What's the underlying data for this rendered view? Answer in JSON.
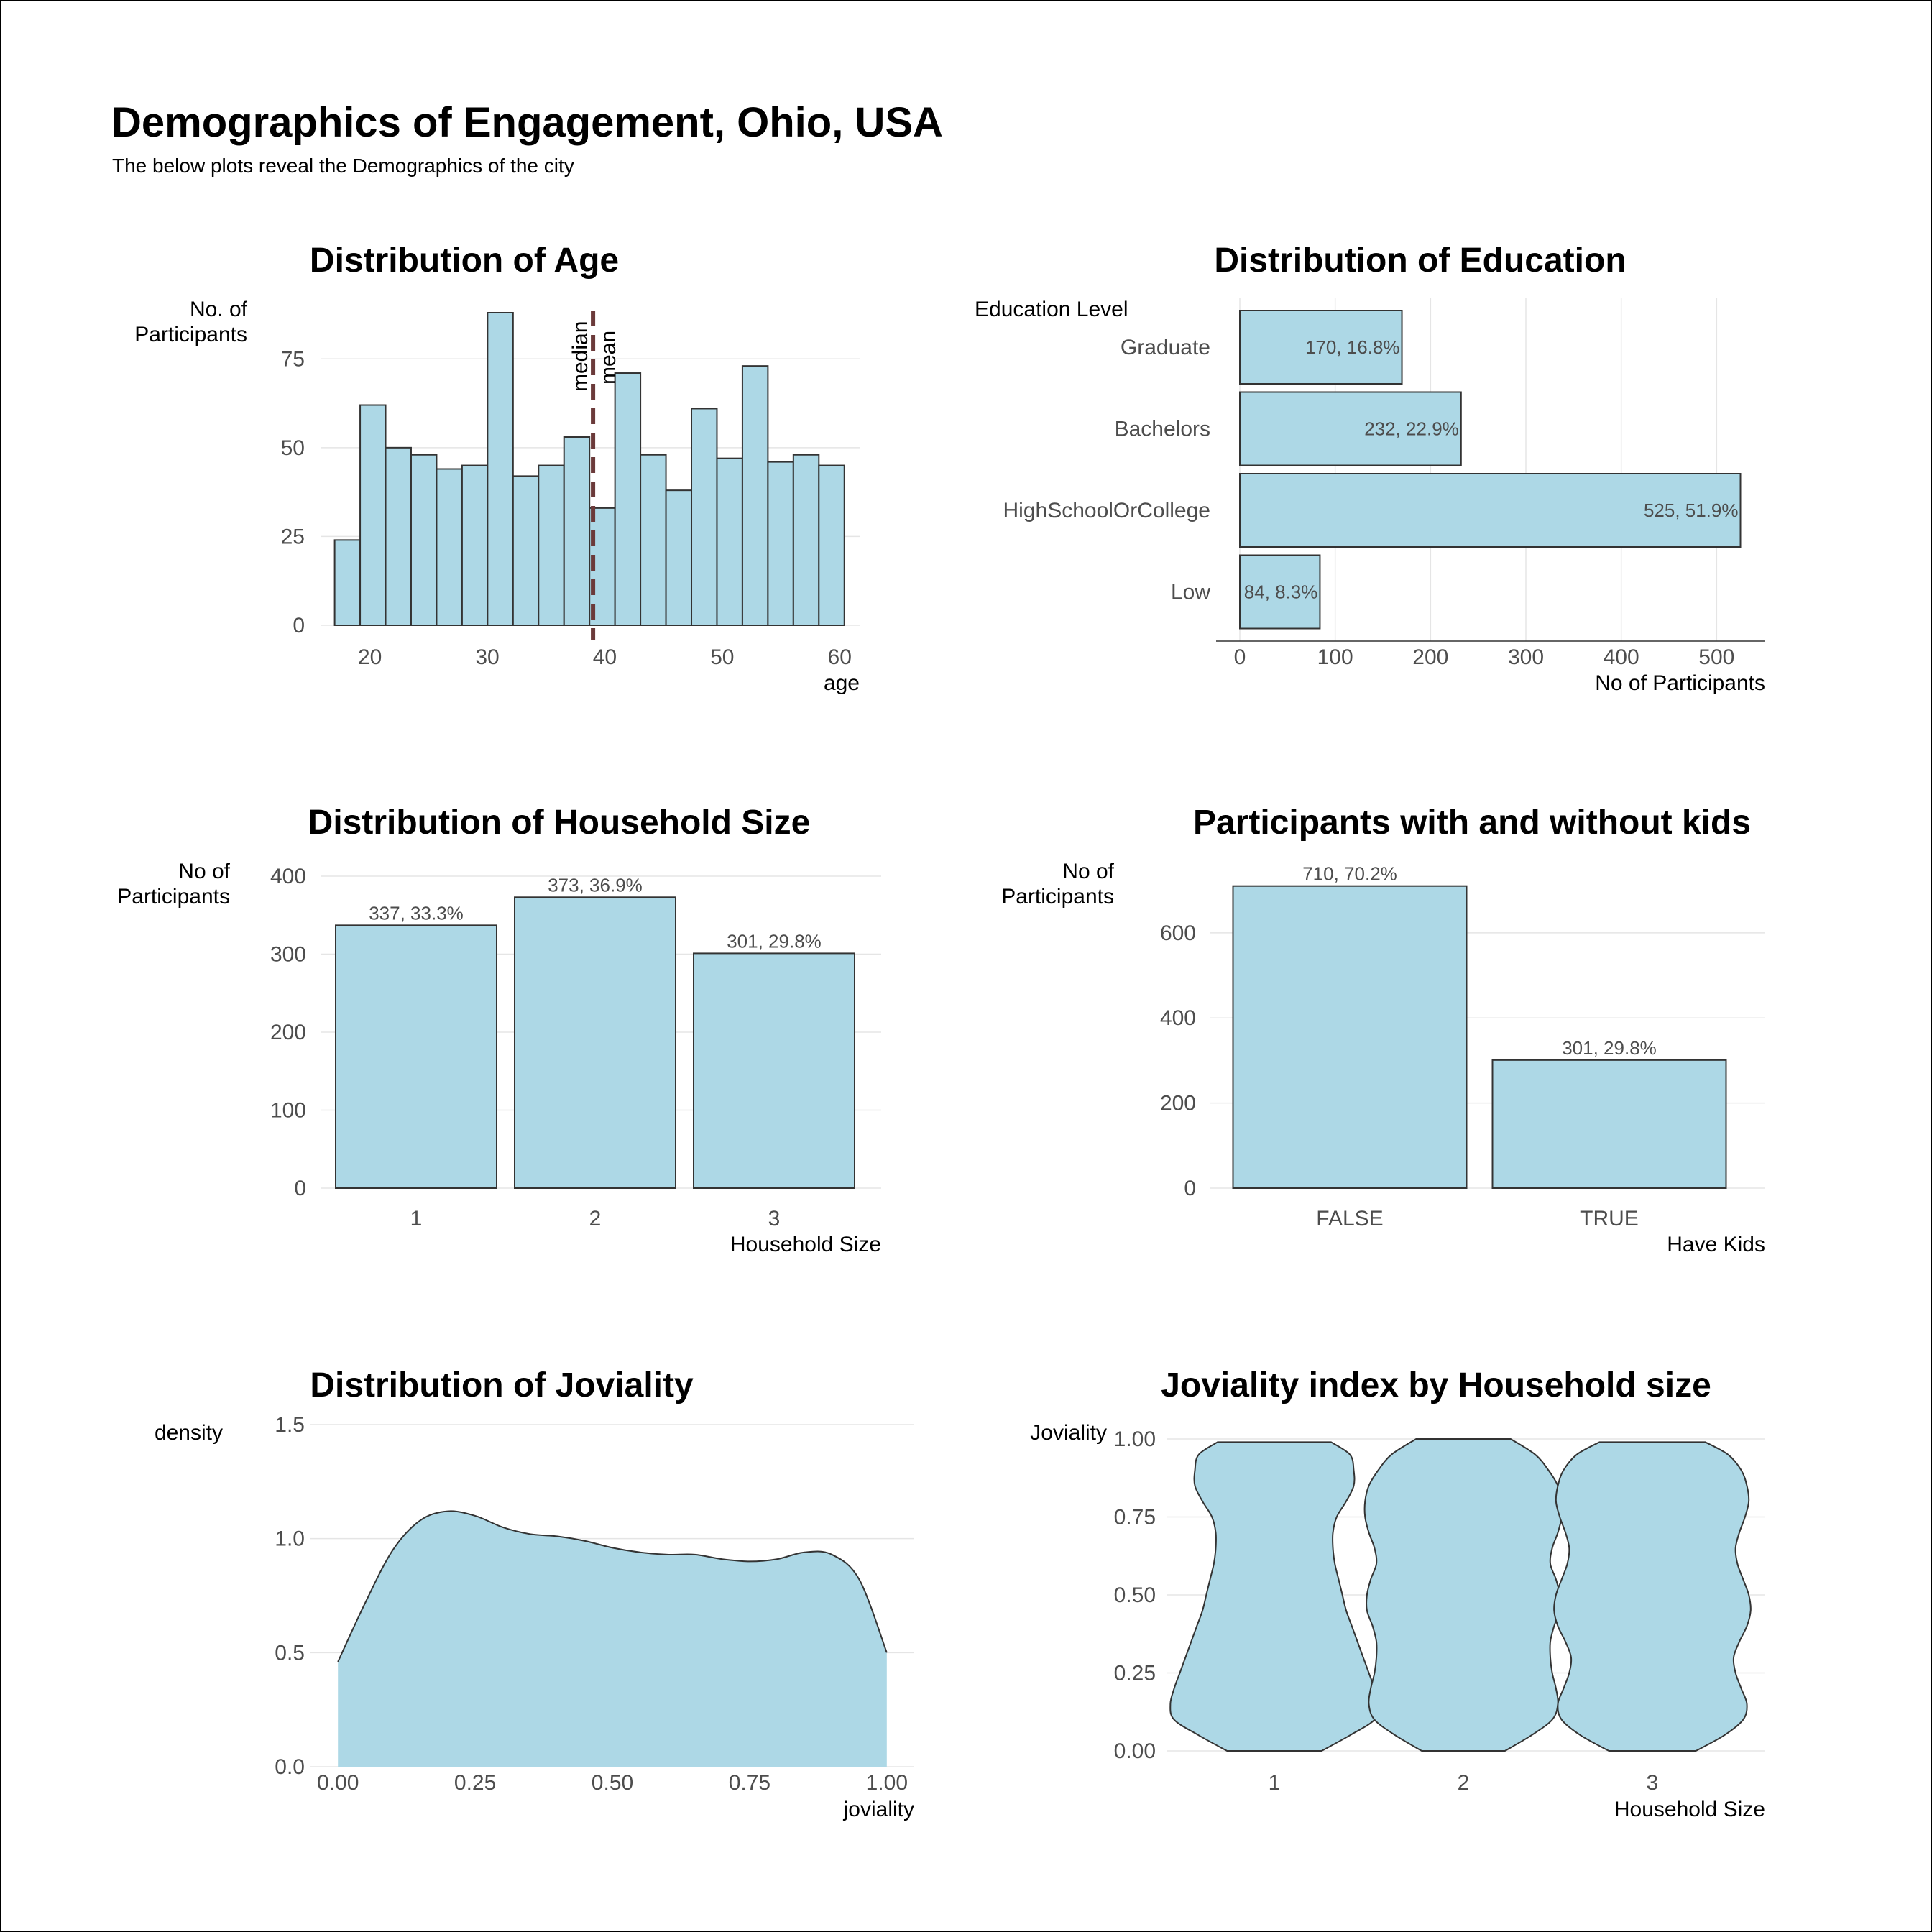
{
  "title": "Demographics of Engagement, Ohio, USA",
  "subtitle": "The below plots reveal the Demographics of the city",
  "colors": {
    "fill": "#add8e6",
    "outline": "#333333",
    "median_line": "#6b3a3a",
    "mean_label": "#e60000",
    "grid": "#e5e5e5"
  },
  "chart_data": [
    {
      "type": "histogram",
      "title": "Distribution of Age",
      "xlabel": "age",
      "ylabel": "No. of\nParticipants",
      "bin_width": 2.17,
      "x_start": 17,
      "counts": [
        24,
        62,
        50,
        48,
        44,
        45,
        88,
        42,
        45,
        53,
        33,
        71,
        48,
        38,
        61,
        47,
        73,
        46,
        48,
        45
      ],
      "xlim": [
        15.8,
        61.7
      ],
      "ylim": [
        0,
        88
      ],
      "xticks": [
        20,
        30,
        40,
        50,
        60
      ],
      "yticks": [
        0,
        25,
        50,
        75
      ],
      "reference_lines": [
        {
          "name": "median",
          "value": 39.0
        },
        {
          "name": "mean",
          "value": 39.07
        }
      ],
      "grid": true
    },
    {
      "type": "bar",
      "orientation": "horizontal",
      "title": "Distribution of Education",
      "ylabel": "Education Level",
      "xlabel": "No of Participants",
      "categories": [
        "Graduate",
        "Bachelors",
        "HighSchoolOrCollege",
        "Low"
      ],
      "values": [
        170,
        232,
        525,
        84
      ],
      "labels": [
        "170, 16.8%",
        "232, 22.9%",
        "525, 51.9%",
        "84, 8.3%"
      ],
      "xlim": [
        0,
        551
      ],
      "xticks": [
        0,
        100,
        200,
        300,
        400,
        500
      ],
      "grid": true
    },
    {
      "type": "bar",
      "title": "Distribution of Household Size",
      "xlabel": "Household Size",
      "ylabel": "No of\nParticipants",
      "categories": [
        "1",
        "2",
        "3"
      ],
      "values": [
        337,
        373,
        301
      ],
      "labels": [
        "337, 33.3%",
        "373, 36.9%",
        "301, 29.8%"
      ],
      "ylim": [
        0,
        400
      ],
      "yticks": [
        0,
        100,
        200,
        300,
        400
      ],
      "grid": true
    },
    {
      "type": "bar",
      "title": "Participants with and without kids",
      "xlabel": "Have Kids",
      "ylabel": "No of\nParticipants",
      "categories": [
        "FALSE",
        "TRUE"
      ],
      "values": [
        710,
        301
      ],
      "labels": [
        "710, 70.2%",
        "301, 29.8%"
      ],
      "ylim": [
        0,
        745
      ],
      "yticks": [
        0,
        200,
        400,
        600
      ],
      "grid": true
    },
    {
      "type": "area",
      "title": "Distribution of Joviality",
      "xlabel": "joviality",
      "ylabel": "density",
      "x": [
        0.0,
        0.05,
        0.1,
        0.15,
        0.2,
        0.25,
        0.3,
        0.35,
        0.4,
        0.45,
        0.5,
        0.55,
        0.6,
        0.65,
        0.7,
        0.75,
        0.8,
        0.85,
        0.9,
        0.95,
        1.0
      ],
      "y": [
        0.46,
        0.72,
        0.95,
        1.08,
        1.12,
        1.1,
        1.05,
        1.02,
        1.01,
        0.99,
        0.96,
        0.94,
        0.93,
        0.93,
        0.91,
        0.9,
        0.91,
        0.94,
        0.93,
        0.82,
        0.5
      ],
      "xlim": [
        -0.05,
        1.05
      ],
      "ylim": [
        0,
        1.5
      ],
      "xticks": [
        0.0,
        0.25,
        0.5,
        0.75,
        1.0
      ],
      "xtick_labels": [
        "0.00",
        "0.25",
        "0.50",
        "0.75",
        "1.00"
      ],
      "yticks": [
        0.0,
        0.5,
        1.0,
        1.5
      ],
      "ytick_labels": [
        "0.0",
        "0.5",
        "1.0",
        "1.5"
      ],
      "grid": true
    },
    {
      "type": "violin",
      "title": "Joviality index by Household size",
      "xlabel": "Household Size",
      "ylabel": "Joviality",
      "categories": [
        "1",
        "2",
        "3"
      ],
      "profile_y": [
        0.0,
        0.05,
        0.1,
        0.15,
        0.2,
        0.25,
        0.3,
        0.35,
        0.4,
        0.45,
        0.5,
        0.55,
        0.6,
        0.65,
        0.7,
        0.75,
        0.8,
        0.85,
        0.9,
        0.95,
        0.99
      ],
      "violins": [
        {
          "name": "1",
          "ymin": 0.0,
          "ymax": 0.99,
          "half_widths": [
            0.25,
            0.4,
            0.53,
            0.55,
            0.53,
            0.5,
            0.47,
            0.44,
            0.41,
            0.38,
            0.36,
            0.34,
            0.32,
            0.31,
            0.31,
            0.33,
            0.38,
            0.42,
            0.42,
            0.4,
            0.3
          ]
        },
        {
          "name": "2",
          "ymin": 0.0,
          "ymax": 1.0,
          "half_widths": [
            0.22,
            0.36,
            0.47,
            0.5,
            0.49,
            0.47,
            0.46,
            0.46,
            0.48,
            0.51,
            0.51,
            0.49,
            0.46,
            0.47,
            0.5,
            0.52,
            0.52,
            0.5,
            0.45,
            0.38,
            0.25
          ]
        },
        {
          "name": "3",
          "ymin": 0.0,
          "ymax": 0.99,
          "half_widths": [
            0.23,
            0.38,
            0.48,
            0.5,
            0.47,
            0.44,
            0.43,
            0.46,
            0.5,
            0.52,
            0.51,
            0.48,
            0.45,
            0.44,
            0.46,
            0.49,
            0.51,
            0.5,
            0.47,
            0.4,
            0.28
          ]
        }
      ],
      "ylim": [
        0,
        1.0
      ],
      "yticks": [
        0.0,
        0.25,
        0.5,
        0.75,
        1.0
      ],
      "ytick_labels": [
        "0.00",
        "0.25",
        "0.50",
        "0.75",
        "1.00"
      ],
      "grid": true
    }
  ]
}
